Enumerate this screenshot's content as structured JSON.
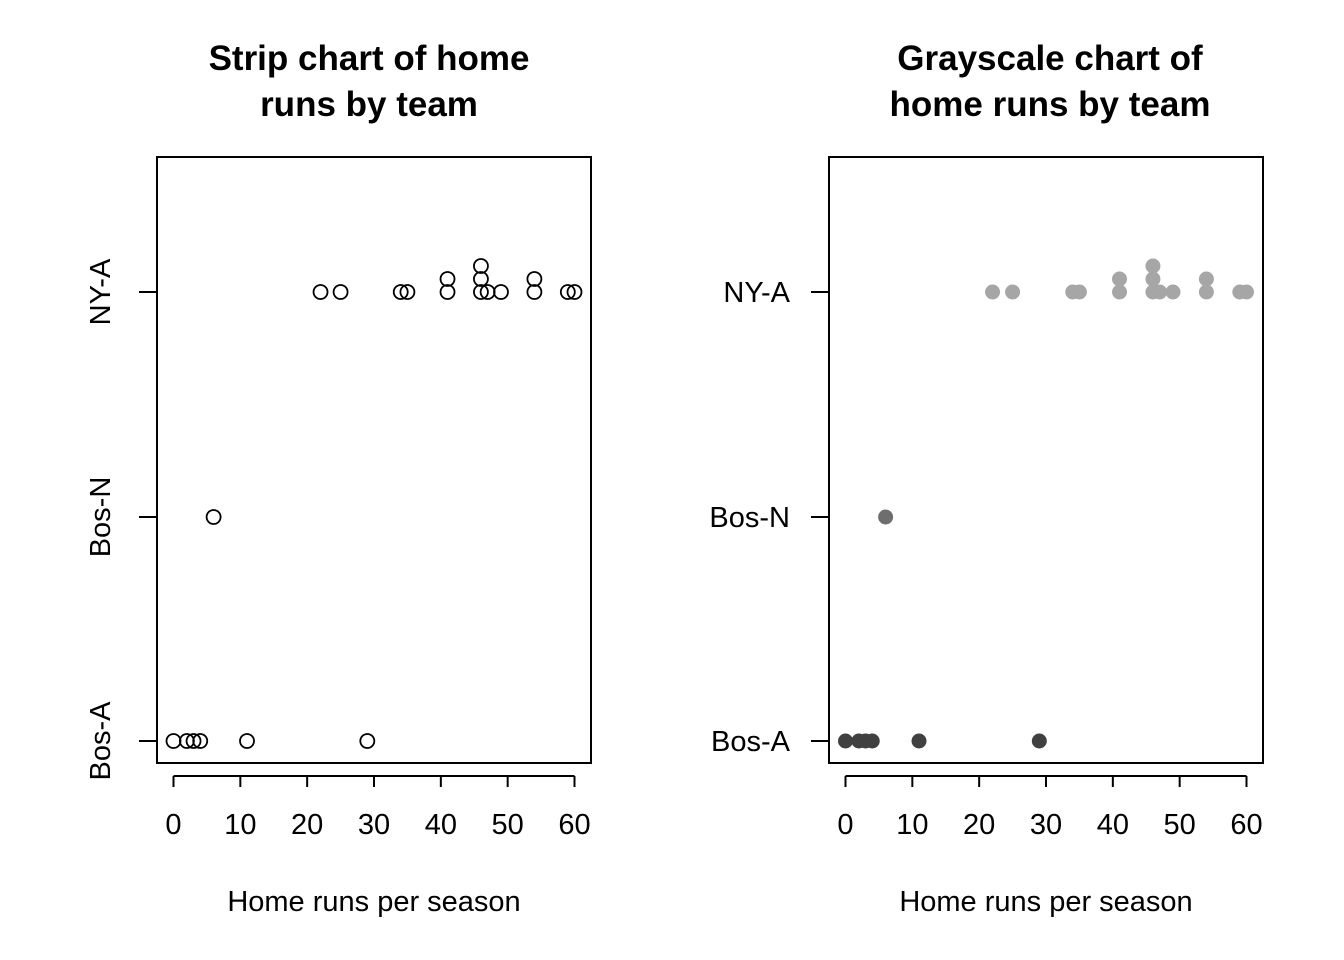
{
  "chart_data": [
    {
      "type": "scatter",
      "subtype": "strip chart",
      "orientation": "horizontal",
      "title": [
        "Strip chart of home",
        "runs by team"
      ],
      "xlabel": "Home runs per season",
      "ylabel": "",
      "xlim": [
        0,
        60
      ],
      "xticks": [
        "0",
        "10",
        "20",
        "30",
        "40",
        "50",
        "60"
      ],
      "categories": [
        "Bos-A",
        "Bos-N",
        "NY-A"
      ],
      "category_label_rotation": "vertical",
      "marker": "open-circle",
      "series": [
        {
          "category": "Bos-A",
          "color": "#000000",
          "values": [
            0,
            2,
            3,
            4,
            11,
            29
          ]
        },
        {
          "category": "Bos-N",
          "color": "#000000",
          "values": [
            6
          ]
        },
        {
          "category": "NY-A",
          "color": "#000000",
          "values": [
            22,
            25,
            34,
            35,
            41,
            41,
            46,
            46,
            46,
            47,
            49,
            54,
            54,
            59,
            60
          ]
        }
      ],
      "grid": false,
      "legend": "none"
    },
    {
      "type": "scatter",
      "subtype": "strip chart",
      "orientation": "horizontal",
      "title": [
        "Grayscale chart of",
        "home runs by team"
      ],
      "xlabel": "Home runs per season",
      "ylabel": "",
      "xlim": [
        0,
        60
      ],
      "xticks": [
        "0",
        "10",
        "20",
        "30",
        "40",
        "50",
        "60"
      ],
      "categories": [
        "Bos-A",
        "Bos-N",
        "NY-A"
      ],
      "category_label_rotation": "horizontal",
      "marker": "filled-circle",
      "series": [
        {
          "category": "Bos-A",
          "color": "#404040",
          "values": [
            0,
            2,
            3,
            4,
            11,
            29
          ]
        },
        {
          "category": "Bos-N",
          "color": "#6e6e6e",
          "values": [
            6
          ]
        },
        {
          "category": "NY-A",
          "color": "#a6a6a6",
          "values": [
            22,
            25,
            34,
            35,
            41,
            41,
            46,
            46,
            46,
            47,
            49,
            54,
            54,
            59,
            60
          ]
        }
      ],
      "grid": false,
      "legend": "none"
    }
  ]
}
